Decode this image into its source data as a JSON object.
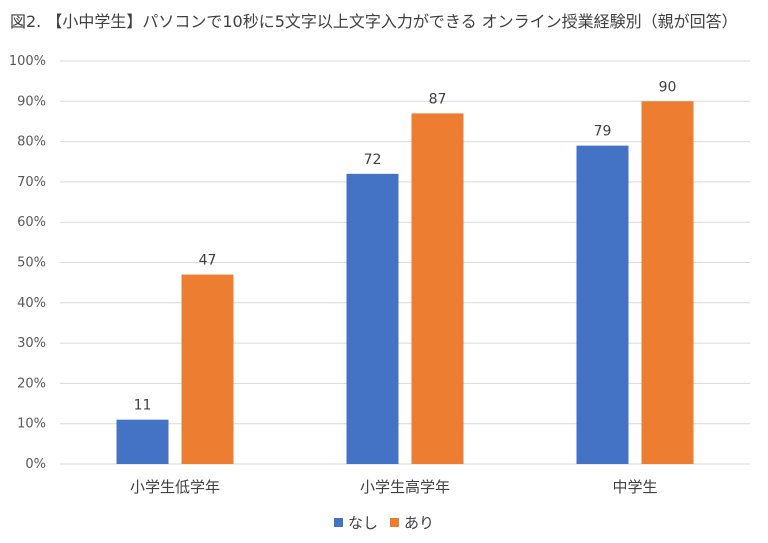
{
  "chart_data": {
    "type": "bar",
    "title": "図2. 【小中学生】パソコンで10秒に5文字以上文字入力ができる オンライン授業経験別（親が回答）",
    "categories": [
      "小学生低学年",
      "小学生高学年",
      "中学生"
    ],
    "series": [
      {
        "name": "なし",
        "values": [
          11,
          72,
          79
        ],
        "color": "#4472C4"
      },
      {
        "name": "あり",
        "values": [
          47,
          87,
          90
        ],
        "color": "#ED7D31"
      }
    ],
    "ylim": [
      0,
      100
    ],
    "yticks": [
      "0%",
      "10%",
      "20%",
      "30%",
      "40%",
      "50%",
      "60%",
      "70%",
      "80%",
      "90%",
      "100%"
    ],
    "grid": true,
    "legend": "bottom"
  }
}
